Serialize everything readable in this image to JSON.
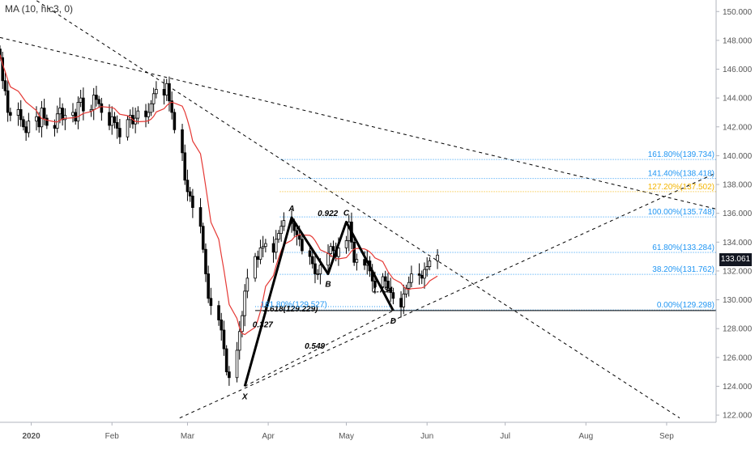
{
  "indicator": {
    "label": "MA (10, hlc3, 0)"
  },
  "last_price": {
    "label": "133.061",
    "value": 133.061
  },
  "colors": {
    "up": "#ffffff",
    "down": "#000000",
    "wick": "#000000",
    "ma": "#e53935",
    "fib_blue": "#2196f3",
    "fib_gold": "#f4b400",
    "axis_text": "#555555",
    "badge_bg": "#131722"
  },
  "chart_data": {
    "type": "candlestick",
    "ylim": [
      121.5,
      150.8
    ],
    "y_ticks": [
      "122.000",
      "124.000",
      "126.000",
      "128.000",
      "130.000",
      "132.000",
      "134.000",
      "136.000",
      "138.000",
      "140.000",
      "142.000",
      "144.000",
      "146.000",
      "148.000",
      "150.000"
    ],
    "x_ticks": [
      "2020",
      "Feb",
      "Mar",
      "Apr",
      "May",
      "Jun",
      "Jul",
      "Aug",
      "Sep"
    ],
    "x_tick_dates": [
      "2020-01-01",
      "2020-02-01",
      "2020-03-01",
      "2020-04-01",
      "2020-05-01",
      "2020-06-01",
      "2020-07-01",
      "2020-08-01",
      "2020-09-01"
    ],
    "x_range": [
      "2019-12-20",
      "2020-09-20"
    ],
    "bars_daily_close": {
      "start_date": "2019-12-20",
      "closes": [
        146.8,
        145.2,
        144.5,
        143.0,
        142.8,
        143.2,
        142.5,
        142.0,
        141.6,
        142.4,
        142.7,
        142.0,
        143.3,
        142.6,
        142.1,
        141.9,
        142.9,
        143.3,
        142.5,
        142.8,
        143.0,
        142.4,
        143.7,
        144.0,
        143.1,
        143.2,
        144.2,
        143.9,
        143.6,
        143.0,
        142.1,
        142.7,
        142.3,
        141.9,
        141.3,
        142.5,
        142.8,
        142.2,
        142.6,
        143.1,
        142.7,
        143.0,
        143.6,
        144.3,
        144.6,
        144.2,
        145.0,
        143.8,
        143.0,
        141.8,
        140.2,
        138.3,
        137.5,
        137.2,
        136.4,
        135.1,
        133.5,
        131.8,
        130.1,
        129.6,
        128.6,
        127.9,
        126.6,
        125.0,
        124.6,
        126.5,
        127.8,
        128.9,
        130.6,
        131.5,
        133.0,
        132.8,
        133.6,
        133.7,
        133.9,
        133.3,
        134.2,
        134.6,
        135.1,
        135.5,
        135.3,
        134.8,
        134.5,
        134.2,
        133.4,
        133.0,
        132.5,
        131.8,
        131.8,
        132.4,
        133.2,
        133.7,
        133.4,
        133.0,
        133.6,
        134.1,
        135.4,
        134.0,
        132.6,
        132.8,
        132.4,
        132.7,
        132.0,
        131.3,
        130.9,
        131.6,
        131.3,
        130.8,
        130.5,
        130.1,
        129.5,
        130.4,
        130.8,
        131.2,
        131.8,
        131.7,
        131.5,
        132.1,
        132.3,
        132.7,
        133.1
      ]
    },
    "moving_average": {
      "name": "MA (10, hlc3, 0)",
      "color": "#e53935"
    },
    "harmonic_pattern": {
      "points": [
        {
          "label": "X",
          "date": "2020-03-23",
          "price": 124.0
        },
        {
          "label": "A",
          "date": "2020-04-10",
          "price": 135.7
        },
        {
          "label": "B",
          "date": "2020-04-24",
          "price": 131.8
        },
        {
          "label": "C",
          "date": "2020-05-01",
          "price": 135.4
        },
        {
          "label": "D",
          "date": "2020-05-19",
          "price": 129.25
        }
      ],
      "ratios": [
        {
          "label": "0.922",
          "date": "2020-04-20",
          "price": 135.8
        },
        {
          "label": "1.734",
          "date": "2020-05-11",
          "price": 130.5
        },
        {
          "label": "0.327",
          "date": "2020-03-26",
          "price": 128.1
        },
        {
          "label": "0.549",
          "date": "2020-04-15",
          "price": 126.6
        },
        {
          "label": "1.618(129.229)",
          "date": "2020-03-30",
          "price": 129.2
        },
        {
          "label": "161.80%(129.527)",
          "date": "2020-03-29",
          "price": 129.5
        }
      ]
    },
    "fib_levels": [
      {
        "label": "161.80%(139.734)",
        "value": 139.734,
        "color": "#2196f3"
      },
      {
        "label": "141.40%(138.418)",
        "value": 138.418,
        "color": "#2196f3"
      },
      {
        "label": "127.20%(137.502)",
        "value": 137.502,
        "color": "#f4b400"
      },
      {
        "label": "100.00%(135.748)",
        "value": 135.748,
        "color": "#2196f3"
      },
      {
        "label": "61.80%(133.284)",
        "value": 133.284,
        "color": "#2196f3"
      },
      {
        "label": "38.20%(131.762)",
        "value": 131.762,
        "color": "#2196f3"
      },
      {
        "label": "0.00%(129.298)",
        "value": 129.298,
        "color": "#2196f3"
      }
    ],
    "trendlines": [
      {
        "from": {
          "date": "2020-01-01",
          "price": 151.0
        },
        "to": {
          "date": "2020-09-06",
          "price": 121.8
        }
      },
      {
        "from": {
          "date": "2019-12-20",
          "price": 148.2
        },
        "to": {
          "date": "2020-09-20",
          "price": 136.3
        }
      },
      {
        "from": {
          "date": "2020-02-27",
          "price": 121.8
        },
        "to": {
          "date": "2020-09-20",
          "price": 138.8
        }
      }
    ],
    "support_line": {
      "from_date": "2020-05-19",
      "to_date": "2020-09-01",
      "price": 129.25
    }
  }
}
